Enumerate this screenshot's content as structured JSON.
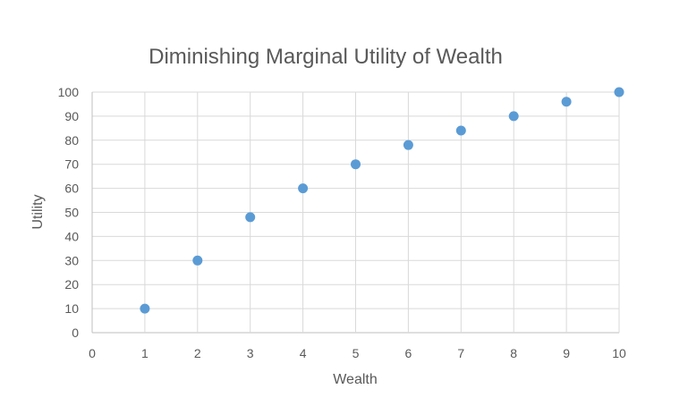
{
  "chart_data": {
    "type": "scatter",
    "title": "Diminishing  Marginal Utility of Wealth",
    "xlabel": "Wealth",
    "ylabel": "Utility",
    "xlim": [
      0,
      10
    ],
    "ylim": [
      0,
      100
    ],
    "x_ticks": [
      0,
      1,
      2,
      3,
      4,
      5,
      6,
      7,
      8,
      9,
      10
    ],
    "y_ticks": [
      0,
      10,
      20,
      30,
      40,
      50,
      60,
      70,
      80,
      90,
      100
    ],
    "grid": true,
    "legend": "none",
    "marker_color": "#5b9bd5",
    "x": [
      1,
      2,
      3,
      4,
      5,
      6,
      7,
      8,
      9,
      10
    ],
    "y": [
      10,
      30,
      48,
      60,
      70,
      78,
      84,
      90,
      96,
      100
    ]
  }
}
